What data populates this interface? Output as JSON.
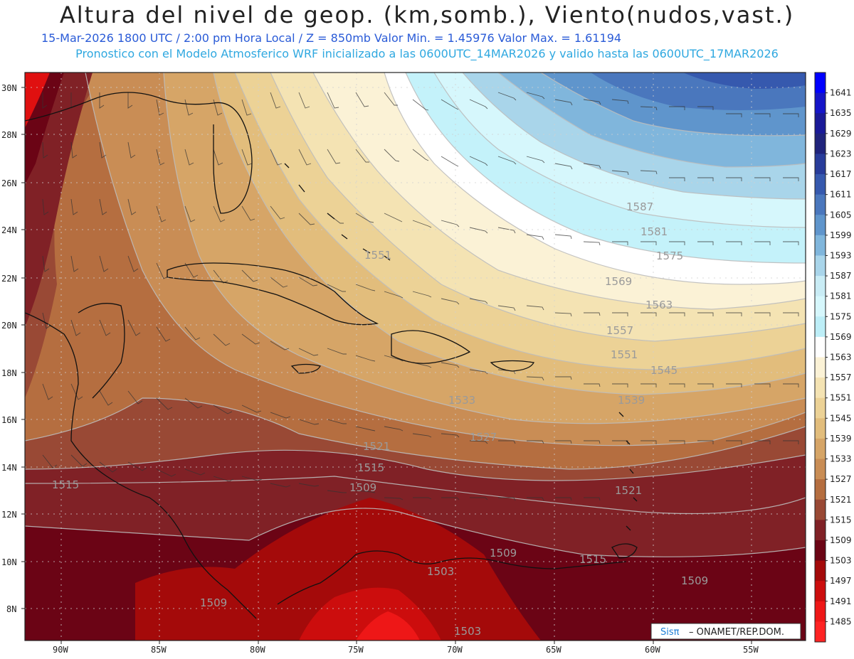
{
  "header": {
    "title": "Altura del nivel de geop. (km,somb.), Viento(nudos,vast.)",
    "subtitle_1": "15-Mar-2026  1800 UTC / 2:00 pm Hora Local / Z = 850mb    Valor Min. = 1.45976  Valor Max. = 1.61194",
    "subtitle_2": "Pronostico con el Modelo Atmosferico WRF inicializado a las 0600UTC_14MAR2026 y valido hasta las  0600UTC_17MAR2026"
  },
  "map": {
    "lat_labels": [
      "30N",
      "28N",
      "26N",
      "24N",
      "22N",
      "20N",
      "18N",
      "16N",
      "14N",
      "12N",
      "10N",
      "8N"
    ],
    "lon_labels": [
      "90W",
      "85W",
      "80W",
      "75W",
      "70W",
      "65W",
      "60W",
      "55W"
    ],
    "contour_labels": [
      "1587",
      "1581",
      "1575",
      "1569",
      "1563",
      "1557",
      "1551",
      "1545",
      "1539",
      "1533",
      "1527",
      "1521",
      "1515",
      "1515",
      "1521",
      "1509",
      "1509",
      "1515",
      "1509",
      "1503",
      "1509",
      "1503",
      "1551"
    ],
    "colors": {
      "blue_dark": "#24408f",
      "blue_light": "#c4f2fa",
      "white_band": "#ffffff",
      "tan_light": "#faefc9",
      "tan_mid": "#d7a86a",
      "brown": "#a85a33",
      "red_brown": "#7a1520",
      "red": "#e01010"
    }
  },
  "colorbar": {
    "levels": [
      "1641",
      "1635",
      "1629",
      "1623",
      "1617",
      "1611",
      "1605",
      "1599",
      "1593",
      "1587",
      "1581",
      "1575",
      "1569",
      "1563",
      "1557",
      "1551",
      "1545",
      "1539",
      "1533",
      "1527",
      "1521",
      "1515",
      "1509",
      "1503",
      "1497",
      "1491",
      "1485"
    ],
    "colors": [
      "#0000ff",
      "#1515c8",
      "#1a1a98",
      "#20247c",
      "#283c9a",
      "#3659ae",
      "#4a77bd",
      "#5f95cc",
      "#80b6dc",
      "#a9d5ea",
      "#c9ecf5",
      "#d6f7fc",
      "#bdeef7",
      "#ffffff",
      "#fbf2d6",
      "#f4e3b3",
      "#ecd296",
      "#e2bd7c",
      "#d6a567",
      "#c98d55",
      "#b56e40",
      "#994935",
      "#802126",
      "#6b0415",
      "#a40a0a",
      "#cc0d0d",
      "#ee1717",
      "#ff2323"
    ]
  },
  "credit": {
    "logo": "Sisπ",
    "text": "– ONAMET/REP.DOM."
  }
}
